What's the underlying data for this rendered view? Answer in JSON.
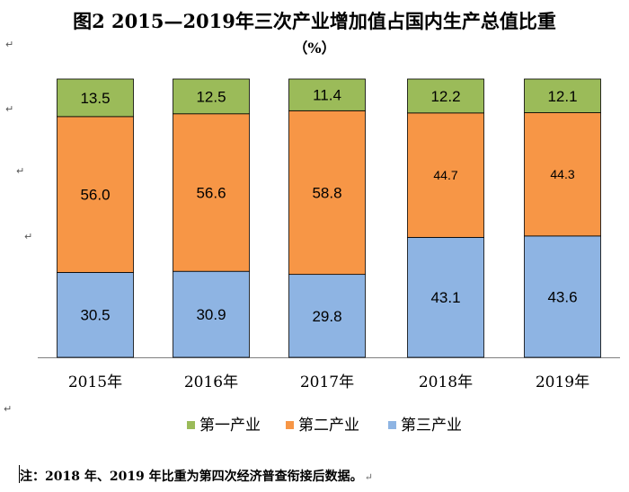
{
  "chart_data": {
    "type": "bar",
    "stacked": true,
    "title": "图2   2015—2019年三次产业增加值占国内生产总值比重",
    "unit": "（%）",
    "categories": [
      "2015年",
      "2016年",
      "2017年",
      "2018年",
      "2019年"
    ],
    "series": [
      {
        "name": "第三产业",
        "color": "#8eb4e3",
        "values": [
          30.5,
          30.9,
          29.8,
          43.1,
          43.6
        ]
      },
      {
        "name": "第二产业",
        "color": "#f79646",
        "values": [
          56.0,
          56.6,
          58.8,
          44.7,
          44.3
        ]
      },
      {
        "name": "第一产业",
        "color": "#9bbb59",
        "values": [
          13.5,
          12.5,
          11.4,
          12.2,
          12.1
        ]
      }
    ],
    "data_labels": {
      "第三产业": [
        "30.5",
        "30.9",
        "29.8",
        "43.1",
        "43.6"
      ],
      "第二产业": [
        "56.0",
        "56.6",
        "58.8",
        "44.7",
        "44.3"
      ],
      "第一产业": [
        "13.5",
        "12.5",
        "11.4",
        "12.2",
        "12.1"
      ]
    },
    "legend": {
      "position": "bottom",
      "items": [
        "第一产业",
        "第二产业",
        "第三产业"
      ],
      "colors": [
        "#9bbb59",
        "#f79646",
        "#8eb4e3"
      ]
    },
    "ylim": [
      0,
      100
    ],
    "grid": false,
    "xlabel": "",
    "ylabel": ""
  },
  "note": "注：2018 年、2019 年比重为第四次经济普查衔接后数据。",
  "return_mark": "↵"
}
